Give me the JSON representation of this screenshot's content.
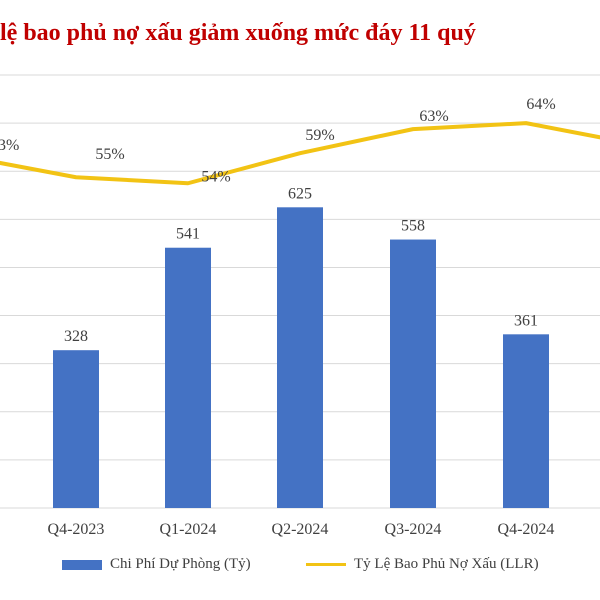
{
  "title": "lệ bao phủ nợ xấu giảm xuống mức đáy 11 quý",
  "chart_data": {
    "type": "bar",
    "categories": [
      "Q4-2023",
      "Q1-2024",
      "Q2-2024",
      "Q3-2024",
      "Q4-2024"
    ],
    "series": [
      {
        "name": "Chi Phí Dự Phòng (Tỷ)",
        "type": "bar",
        "axis": "left",
        "values": [
          328,
          541,
          625,
          558,
          361
        ],
        "labels": [
          "328",
          "541",
          "625",
          "558",
          "361"
        ],
        "color": "#4472c4"
      },
      {
        "name": "Tỷ Lệ Bao Phủ Nợ Xấu (LLR)",
        "type": "line",
        "axis": "right",
        "values": [
          55,
          54,
          59,
          63,
          64
        ],
        "labels": [
          "55%",
          "54%",
          "59%",
          "63%",
          "64%"
        ],
        "color": "#f2c314"
      }
    ],
    "partial_line_points": {
      "left_edge_label": "3%",
      "left_edge_value": 58,
      "right_edge_value": 61
    },
    "ylim_left": [
      0,
      900
    ],
    "ylim_right": [
      0,
      72
    ],
    "grid": true,
    "legend_position": "bottom"
  }
}
